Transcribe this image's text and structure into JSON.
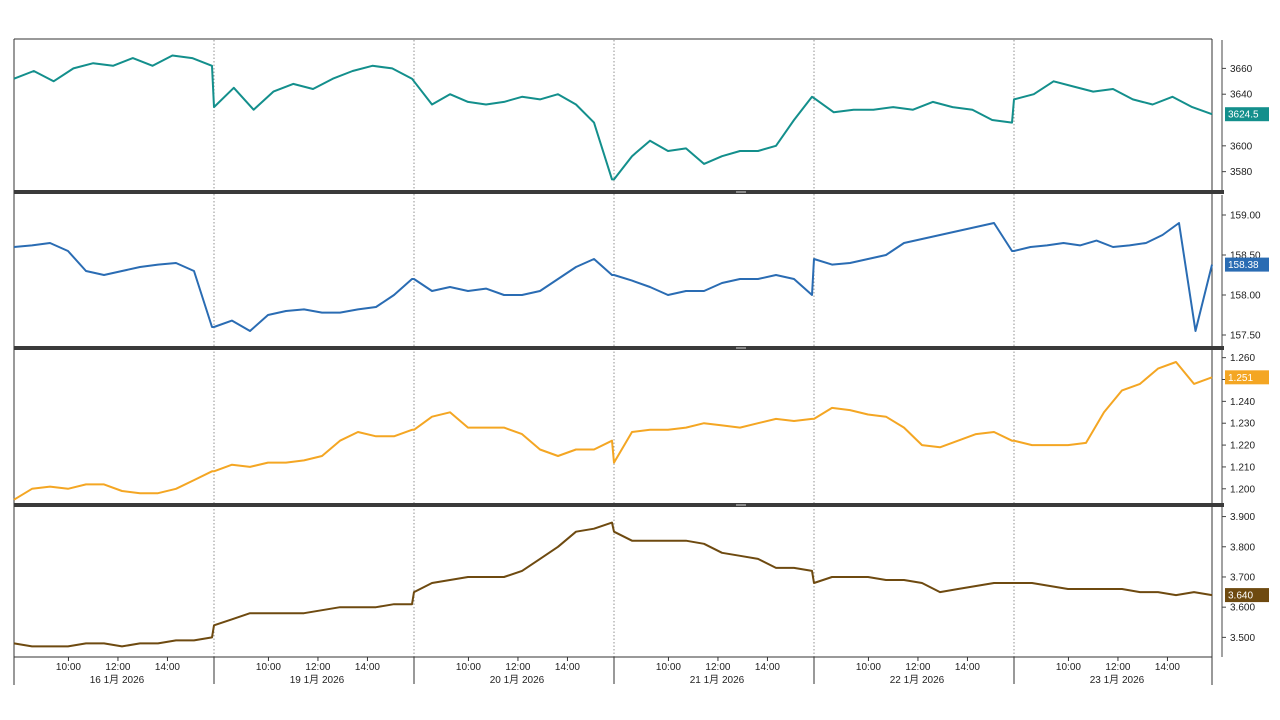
{
  "chart_data": [
    {
      "type": "line",
      "color": "#138f8c",
      "y_ticks": [
        "3660",
        "3640",
        "3600",
        "3580"
      ],
      "y_tick_values": [
        3660,
        3640,
        3600,
        3580
      ],
      "ylim": [
        3565,
        3682
      ],
      "last_value_label": "3624.5",
      "series": [
        {
          "days": [
            [
              3652,
              3658,
              3650,
              3660,
              3664,
              3662,
              3668,
              3662,
              3670,
              3668,
              3662
            ],
            [
              3630,
              3645,
              3628,
              3642,
              3648,
              3644,
              3652,
              3658,
              3662,
              3660,
              3652
            ],
            [
              3650,
              3632,
              3640,
              3634,
              3632,
              3634,
              3638,
              3636,
              3640,
              3632,
              3618,
              3574
            ],
            [
              3574,
              3592,
              3604,
              3596,
              3598,
              3586,
              3592,
              3596,
              3596,
              3600,
              3620,
              3638
            ],
            [
              3637,
              3626,
              3628,
              3628,
              3630,
              3628,
              3634,
              3630,
              3628,
              3620,
              3618
            ],
            [
              3636,
              3640,
              3650,
              3646,
              3642,
              3644,
              3636,
              3632,
              3638,
              3630,
              3624.5
            ]
          ]
        }
      ]
    },
    {
      "type": "line",
      "color": "#2a6cb3",
      "y_ticks": [
        "159.00",
        "158.50",
        "158.00",
        "157.50"
      ],
      "y_tick_values": [
        159.0,
        158.5,
        158.0,
        157.5
      ],
      "ylim": [
        157.35,
        159.25
      ],
      "last_value_label": "158.38",
      "series": [
        {
          "days": [
            [
              158.6,
              158.62,
              158.65,
              158.55,
              158.3,
              158.25,
              158.3,
              158.35,
              158.38,
              158.4,
              158.3,
              157.6
            ],
            [
              157.6,
              157.68,
              157.55,
              157.75,
              157.8,
              157.82,
              157.78,
              157.78,
              157.82,
              157.85,
              158.0,
              158.2
            ],
            [
              158.2,
              158.05,
              158.1,
              158.05,
              158.08,
              158.0,
              158.0,
              158.05,
              158.2,
              158.35,
              158.45,
              158.25
            ],
            [
              158.25,
              158.18,
              158.1,
              158.0,
              158.05,
              158.05,
              158.15,
              158.2,
              158.2,
              158.25,
              158.2,
              158.0
            ],
            [
              158.45,
              158.38,
              158.4,
              158.45,
              158.5,
              158.65,
              158.7,
              158.75,
              158.8,
              158.85,
              158.9,
              158.55
            ],
            [
              158.55,
              158.6,
              158.62,
              158.65,
              158.62,
              158.68,
              158.6,
              158.62,
              158.65,
              158.75,
              158.9,
              157.55,
              158.38
            ]
          ]
        }
      ]
    },
    {
      "type": "line",
      "color": "#f4a623",
      "y_ticks": [
        "1.260",
        "1.250",
        "1.240",
        "1.230",
        "1.220",
        "1.210",
        "1.200"
      ],
      "y_tick_values": [
        1.26,
        1.25,
        1.24,
        1.23,
        1.22,
        1.21,
        1.2
      ],
      "ylim": [
        1.1935,
        1.2635
      ],
      "last_value_label": "1.251",
      "series": [
        {
          "days": [
            [
              1.195,
              1.2,
              1.201,
              1.2,
              1.202,
              1.202,
              1.199,
              1.198,
              1.198,
              1.2,
              1.204,
              1.208
            ],
            [
              1.208,
              1.211,
              1.21,
              1.212,
              1.212,
              1.213,
              1.215,
              1.222,
              1.226,
              1.224,
              1.224,
              1.227
            ],
            [
              1.227,
              1.233,
              1.235,
              1.228,
              1.228,
              1.228,
              1.225,
              1.218,
              1.215,
              1.218,
              1.218,
              1.222
            ],
            [
              1.212,
              1.226,
              1.227,
              1.227,
              1.228,
              1.23,
              1.229,
              1.228,
              1.23,
              1.232,
              1.231,
              1.232
            ],
            [
              1.232,
              1.237,
              1.236,
              1.234,
              1.233,
              1.228,
              1.22,
              1.219,
              1.222,
              1.225,
              1.226,
              1.222
            ],
            [
              1.222,
              1.22,
              1.22,
              1.22,
              1.221,
              1.235,
              1.245,
              1.248,
              1.255,
              1.258,
              1.248,
              1.251
            ]
          ]
        }
      ]
    },
    {
      "type": "line",
      "color": "#6e4a10",
      "y_ticks": [
        "3.900",
        "3.800",
        "3.700",
        "3.640",
        "3.600",
        "3.500"
      ],
      "y_tick_values": [
        3.9,
        3.8,
        3.7,
        3.64,
        3.6,
        3.5
      ],
      "ylim": [
        3.435,
        3.935
      ],
      "last_value_label": "3.640",
      "series": [
        {
          "days": [
            [
              3.48,
              3.47,
              3.47,
              3.47,
              3.48,
              3.48,
              3.47,
              3.48,
              3.48,
              3.49,
              3.49,
              3.5
            ],
            [
              3.54,
              3.56,
              3.58,
              3.58,
              3.58,
              3.58,
              3.59,
              3.6,
              3.6,
              3.6,
              3.61,
              3.61
            ],
            [
              3.65,
              3.68,
              3.69,
              3.7,
              3.7,
              3.7,
              3.72,
              3.76,
              3.8,
              3.85,
              3.86,
              3.88
            ],
            [
              3.85,
              3.82,
              3.82,
              3.82,
              3.82,
              3.81,
              3.78,
              3.77,
              3.76,
              3.73,
              3.73,
              3.72
            ],
            [
              3.68,
              3.7,
              3.7,
              3.7,
              3.69,
              3.69,
              3.68,
              3.65,
              3.66,
              3.67,
              3.68,
              3.68
            ],
            [
              3.68,
              3.68,
              3.67,
              3.66,
              3.66,
              3.66,
              3.66,
              3.65,
              3.65,
              3.64,
              3.65,
              3.64
            ]
          ]
        }
      ]
    }
  ],
  "x_axis": {
    "time_ticks": [
      "10:00",
      "12:00",
      "14:00"
    ],
    "day_labels": [
      "16 1月 2026",
      "19 1月 2026",
      "20 1月 2026",
      "21 1月 2026",
      "22 1月 2026",
      "23 1月 2026"
    ]
  }
}
